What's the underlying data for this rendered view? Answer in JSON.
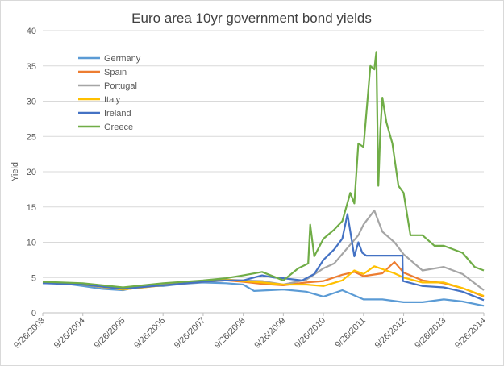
{
  "chart_data": {
    "type": "line",
    "title": "Euro area 10yr government bond yields",
    "xlabel": "",
    "ylabel": "Yield",
    "ylim": [
      0,
      40
    ],
    "yticks": [
      0,
      5,
      10,
      15,
      20,
      25,
      30,
      35,
      40
    ],
    "xlim": [
      2003.73,
      2014.73
    ],
    "xticks": [
      {
        "label": "9/26/2003",
        "x": 2003.73
      },
      {
        "label": "9/26/2004",
        "x": 2004.73
      },
      {
        "label": "9/26/2005",
        "x": 2005.73
      },
      {
        "label": "9/26/2006",
        "x": 2006.73
      },
      {
        "label": "9/26/2007",
        "x": 2007.73
      },
      {
        "label": "9/26/2008",
        "x": 2008.73
      },
      {
        "label": "9/26/2009",
        "x": 2009.73
      },
      {
        "label": "9/26/2010",
        "x": 2010.73
      },
      {
        "label": "9/26/2011",
        "x": 2011.73
      },
      {
        "label": "9/26/2012",
        "x": 2012.73
      },
      {
        "label": "9/26/2013",
        "x": 2013.73
      },
      {
        "label": "9/26/2014",
        "x": 2014.73
      }
    ],
    "legend_position": "top-left",
    "grid": true,
    "series": [
      {
        "name": "Germany",
        "color": "#5B9BD5",
        "x": [
          2003.73,
          2004.2,
          2004.73,
          2005.2,
          2005.73,
          2006.2,
          2006.73,
          2007.2,
          2007.73,
          2008.3,
          2008.73,
          2009.0,
          2009.73,
          2010.3,
          2010.73,
          2011.2,
          2011.73,
          2012.2,
          2012.73,
          2013.2,
          2013.73,
          2014.2,
          2014.73
        ],
        "y": [
          4.2,
          4.2,
          3.8,
          3.4,
          3.2,
          3.8,
          3.8,
          4.1,
          4.3,
          4.2,
          4.0,
          3.1,
          3.3,
          3.0,
          2.3,
          3.2,
          1.9,
          1.9,
          1.5,
          1.5,
          1.9,
          1.6,
          1.0
        ]
      },
      {
        "name": "Spain",
        "color": "#ED7D31",
        "x": [
          2003.73,
          2004.73,
          2005.73,
          2006.73,
          2007.73,
          2008.3,
          2008.73,
          2009.2,
          2009.73,
          2010.3,
          2010.73,
          2011.2,
          2011.5,
          2011.73,
          2012.2,
          2012.5,
          2012.73,
          2013.2,
          2013.73,
          2014.2,
          2014.73
        ],
        "y": [
          4.3,
          4.0,
          3.3,
          3.9,
          4.4,
          4.6,
          4.4,
          4.1,
          3.9,
          4.3,
          4.5,
          5.4,
          5.8,
          5.2,
          5.6,
          7.2,
          5.7,
          4.6,
          4.2,
          3.5,
          2.3
        ]
      },
      {
        "name": "Portugal",
        "color": "#A5A5A5",
        "x": [
          2003.73,
          2004.73,
          2005.73,
          2006.73,
          2007.73,
          2008.3,
          2008.73,
          2009.2,
          2009.73,
          2010.3,
          2010.73,
          2011.0,
          2011.3,
          2011.6,
          2011.73,
          2012.0,
          2012.2,
          2012.5,
          2012.73,
          2013.2,
          2013.73,
          2014.2,
          2014.73
        ],
        "y": [
          4.3,
          4.0,
          3.3,
          4.0,
          4.5,
          4.7,
          4.6,
          4.5,
          4.0,
          4.7,
          6.3,
          7.0,
          9.0,
          11.0,
          12.5,
          14.5,
          11.5,
          10.0,
          8.3,
          6.0,
          6.5,
          5.5,
          3.2
        ]
      },
      {
        "name": "Italy",
        "color": "#FFC000",
        "x": [
          2003.73,
          2004.73,
          2005.73,
          2006.73,
          2007.73,
          2008.3,
          2008.73,
          2009.2,
          2009.73,
          2010.3,
          2010.73,
          2011.2,
          2011.5,
          2011.73,
          2012.0,
          2012.5,
          2012.73,
          2013.2,
          2013.73,
          2014.2,
          2014.73
        ],
        "y": [
          4.3,
          4.0,
          3.3,
          3.9,
          4.5,
          4.7,
          4.5,
          4.3,
          4.0,
          4.0,
          3.8,
          4.6,
          6.0,
          5.5,
          6.6,
          5.6,
          5.0,
          4.3,
          4.3,
          3.5,
          2.4
        ]
      },
      {
        "name": "Ireland",
        "color": "#4472C4",
        "x": [
          2003.73,
          2004.73,
          2005.73,
          2006.73,
          2007.73,
          2008.3,
          2008.73,
          2009.2,
          2009.5,
          2009.73,
          2010.2,
          2010.5,
          2010.73,
          2011.0,
          2011.2,
          2011.33,
          2011.5,
          2011.6,
          2011.7,
          2011.8,
          2012.0,
          2012.2,
          2012.7,
          2012.71,
          2013.2,
          2013.73,
          2014.2,
          2014.73
        ],
        "y": [
          4.2,
          4.0,
          3.4,
          3.9,
          4.4,
          4.6,
          4.6,
          5.3,
          5.0,
          4.9,
          4.6,
          5.5,
          7.5,
          9.0,
          10.5,
          14.0,
          8.0,
          10.0,
          8.5,
          8.1,
          8.1,
          8.1,
          8.1,
          4.5,
          3.8,
          3.6,
          3.0,
          1.8
        ]
      },
      {
        "name": "Greece",
        "color": "#70AD47",
        "x": [
          2003.73,
          2004.73,
          2005.73,
          2006.73,
          2007.73,
          2008.3,
          2008.73,
          2009.2,
          2009.73,
          2010.1,
          2010.35,
          2010.4,
          2010.5,
          2010.73,
          2011.0,
          2011.2,
          2011.4,
          2011.5,
          2011.6,
          2011.73,
          2011.9,
          2012.0,
          2012.05,
          2012.1,
          2012.15,
          2012.2,
          2012.3,
          2012.45,
          2012.6,
          2012.73,
          2012.9,
          2013.2,
          2013.5,
          2013.73,
          2014.2,
          2014.5,
          2014.73
        ],
        "y": [
          4.4,
          4.2,
          3.6,
          4.2,
          4.6,
          4.9,
          5.3,
          5.8,
          4.6,
          6.3,
          7.0,
          12.5,
          8.0,
          10.5,
          11.8,
          13.0,
          17.0,
          15.5,
          24.0,
          23.5,
          35.0,
          34.5,
          37.0,
          18.0,
          26.0,
          30.5,
          27.0,
          24.0,
          18.0,
          17.0,
          11.0,
          11.0,
          9.5,
          9.5,
          8.5,
          6.5,
          6.0
        ]
      }
    ]
  }
}
